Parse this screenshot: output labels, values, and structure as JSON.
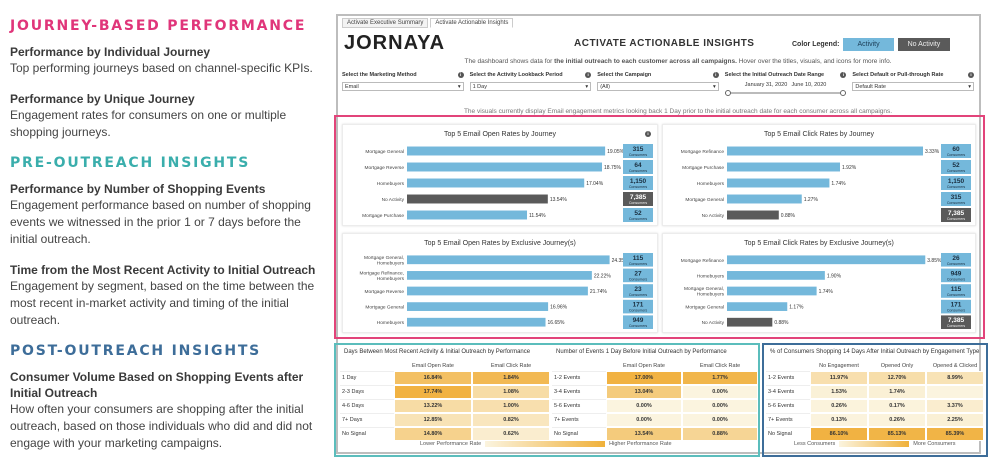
{
  "left": {
    "sections": [
      {
        "title": "JOURNEY-BASED PERFORMANCE",
        "color": "#e0357a",
        "items": [
          {
            "heading": "Performance by Individual Journey",
            "desc": "Top performing journeys based on channel-specific KPIs."
          },
          {
            "heading": "Performance by Unique Journey",
            "desc": "Engagement rates for consumers on one or multiple shopping journeys."
          }
        ]
      },
      {
        "title": "PRE-OUTREACH INSIGHTS",
        "color": "#3aaeac",
        "items": [
          {
            "heading": "Performance by Number of Shopping Events",
            "desc": "Engagement performance based on number of shopping events we witnessed in the prior 1 or 7 days before the initial outreach."
          },
          {
            "heading": "Time from the Most Recent Activity to Initial Outreach",
            "desc": "Engagement by segment, based on the time between the most recent in-market activity and timing of the initial outreach."
          }
        ]
      },
      {
        "title": "POST-OUTREACH INSIGHTS",
        "color": "#3d6d99",
        "items": [
          {
            "heading": "Consumer Volume Based on Shopping Events after Initial Outreach",
            "desc": "How often your consumers are shopping after the initial outreach, based on those individuals who did and did not engage with your marketing campaigns."
          }
        ]
      }
    ]
  },
  "dash": {
    "tabs": [
      "Activate Executive Summary",
      "Activate Actionable Insights"
    ],
    "logo": "JORNAYA",
    "title": "ACTIVATE ACTIONABLE INSIGHTS",
    "legend": {
      "label": "Color Legend:",
      "activity": "Activity",
      "no_activity": "No Activity",
      "activity_color": "#74b8db",
      "no_activity_color": "#5a5a5a"
    },
    "subtitle_pre": "The dashboard shows data for ",
    "subtitle_bold": "the initial outreach to each customer across all campaigns.",
    "subtitle_post": " Hover over the titles, visuals, and icons for more info.",
    "note": "The visuals currently display Email engagement metrics looking back 1 Day prior to the initial outreach date for each consumer across all campaigns.",
    "filters": [
      {
        "label": "Select the Marketing Method",
        "value": "Email"
      },
      {
        "label": "Select the Activity Lookback Period",
        "value": "1 Day"
      },
      {
        "label": "Select the Campaign",
        "value": "(All)"
      },
      {
        "label": "Select the Initial Outreach Date Range",
        "start": "January 31, 2020",
        "end": "June 10, 2020"
      },
      {
        "label": "Select Default or Pull-through Rate",
        "value": "Default Rate"
      }
    ]
  },
  "chart_data": [
    {
      "type": "bar",
      "title": "Top 5 Email Open Rates by Journey",
      "categories": [
        "Mortgage General",
        "Mortgage Reverse",
        "Homebuyers",
        "No Activity",
        "Mortgage Purchase"
      ],
      "values": [
        19.05,
        18.75,
        17.04,
        13.54,
        11.54
      ],
      "value_labels": [
        "19.05%",
        "18.75%",
        "17.04%",
        "13.54%",
        "11.54%"
      ],
      "consumers": [
        "315",
        "64",
        "1,150",
        "7,385",
        "52"
      ],
      "no_activity_index": 3,
      "xlim": [
        0,
        20
      ]
    },
    {
      "type": "bar",
      "title": "Top 5 Email Click Rates by Journey",
      "categories": [
        "Mortgage Refinance",
        "Mortgage Purchase",
        "Homebuyers",
        "Mortgage General",
        "No Activity"
      ],
      "values": [
        3.33,
        1.92,
        1.74,
        1.27,
        0.88
      ],
      "value_labels": [
        "3.33%",
        "1.92%",
        "1.74%",
        "1.27%",
        "0.88%"
      ],
      "consumers": [
        "60",
        "52",
        "1,150",
        "315",
        "7,385"
      ],
      "no_activity_index": 4,
      "xlim": [
        0,
        3.5
      ]
    },
    {
      "type": "bar",
      "title": "Top 5 Email Open Rates by Exclusive Journey(s)",
      "categories": [
        "Mortgage General, Homebuyers",
        "Mortgage Refinance, Homebuyers",
        "Mortgage Reverse",
        "Mortgage General",
        "Homebuyers"
      ],
      "values": [
        24.35,
        22.22,
        21.74,
        16.96,
        16.65
      ],
      "value_labels": [
        "24.35%",
        "22.22%",
        "21.74%",
        "16.96%",
        "16.65%"
      ],
      "consumers": [
        "115",
        "27",
        "23",
        "171",
        "949"
      ],
      "no_activity_index": -1,
      "xlim": [
        0,
        25
      ]
    },
    {
      "type": "bar",
      "title": "Top 5 Email Click Rates by Exclusive Journey(s)",
      "categories": [
        "Mortgage Refinance",
        "Homebuyers",
        "Mortgage General, Homebuyers",
        "Mortgage General",
        "No Activity"
      ],
      "values": [
        3.85,
        1.9,
        1.74,
        1.17,
        0.88
      ],
      "value_labels": [
        "3.85%",
        "1.90%",
        "1.74%",
        "1.17%",
        "0.88%"
      ],
      "consumers": [
        "26",
        "949",
        "115",
        "171",
        "7,385"
      ],
      "no_activity_index": 4,
      "xlim": [
        0,
        4
      ]
    }
  ],
  "consumers_label": "Consumers",
  "tables": [
    {
      "title": "Days Between Most Recent Activity & Initial Outreach by Performance",
      "columns": [
        "Email Open Rate",
        "Email Click Rate"
      ],
      "rows": [
        "1 Day",
        "2-3 Days",
        "4-6 Days",
        "7+ Days",
        "No Signal"
      ],
      "cells": [
        [
          "16.84%",
          "1.84%"
        ],
        [
          "17.74%",
          "1.08%"
        ],
        [
          "13.22%",
          "1.00%"
        ],
        [
          "12.85%",
          "0.82%"
        ],
        [
          "14.80%",
          "0.62%"
        ]
      ],
      "intensity": [
        [
          0.75,
          0.85
        ],
        [
          0.95,
          0.35
        ],
        [
          0.35,
          0.3
        ],
        [
          0.25,
          0.2
        ],
        [
          0.5,
          0.1
        ]
      ]
    },
    {
      "title": "Number of Events 1 Day Before Initial Outreach by Performance",
      "columns": [
        "Email Open Rate",
        "Email Click Rate"
      ],
      "rows": [
        "1-2 Events",
        "3-4 Events",
        "5-6 Events",
        "7+ Events",
        "No Signal"
      ],
      "cells": [
        [
          "17.00%",
          "1.77%"
        ],
        [
          "13.04%",
          "0.00%"
        ],
        [
          "0.00%",
          "0.00%"
        ],
        [
          "0.00%",
          "0.00%"
        ],
        [
          "13.54%",
          "0.88%"
        ]
      ],
      "intensity": [
        [
          0.95,
          0.9
        ],
        [
          0.6,
          0
        ],
        [
          0,
          0
        ],
        [
          0,
          0
        ],
        [
          0.6,
          0.45
        ]
      ]
    },
    {
      "title": "% of Consumers Shopping 14 Days After Initial Outreach by Engagement Type",
      "columns": [
        "No Engagement",
        "Opened Only",
        "Opened & Clicked"
      ],
      "rows": [
        "1-2 Events",
        "3-4 Events",
        "5-6 Events",
        "7+ Events",
        "No Signal"
      ],
      "cells": [
        [
          "11.97%",
          "12.70%",
          "8.99%"
        ],
        [
          "1.53%",
          "1.74%",
          ""
        ],
        [
          "0.26%",
          "0.17%",
          "3.37%"
        ],
        [
          "0.13%",
          "0.26%",
          "2.25%"
        ],
        [
          "86.10%",
          "85.13%",
          "85.39%"
        ]
      ],
      "intensity": [
        [
          0.3,
          0.32,
          0.25
        ],
        [
          0.05,
          0.06,
          0
        ],
        [
          0.02,
          0.02,
          0.1
        ],
        [
          0.01,
          0.02,
          0.06
        ],
        [
          0.95,
          0.92,
          0.93
        ]
      ]
    }
  ],
  "table_legends": [
    {
      "low": "Lower Performance Rate",
      "high": "Higher Performance Rate"
    },
    {
      "low": "Less Consumers",
      "high": "More Consumers"
    }
  ]
}
